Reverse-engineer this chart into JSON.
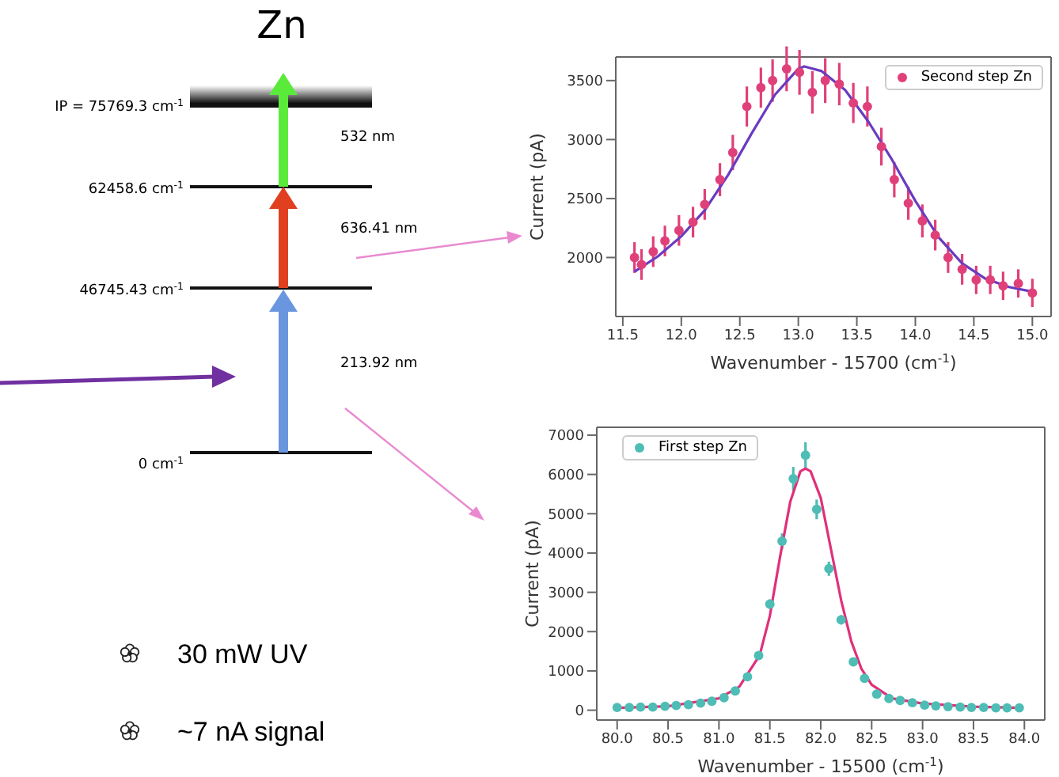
{
  "chart_data": [
    {
      "type": "other",
      "title": "Zn",
      "annotations": [
        "IP = 75769.3 cm$^{-1}$",
        "62458.6 cm$^{-1}$",
        "46745.43 cm$^{-1}$",
        "0 cm$^{-1}$",
        "532 nm",
        "636.41 nm",
        "213.92 nm",
        "30 mW UV",
        "~7 nA signal"
      ]
    },
    {
      "type": "scatter",
      "xlabel": "Wavenumber - 15700 (cm$^{-1}$)",
      "ylabel": "Current (pA)",
      "xlim": [
        11.44,
        15.16
      ],
      "ylim": [
        1500,
        3700
      ],
      "xticks": [
        11.5,
        {
          "value": 12,
          "label": "12.0"
        },
        12.5,
        {
          "value": 13,
          "label": "13.0"
        },
        13.5,
        {
          "value": 14,
          "label": "14.0"
        },
        14.5,
        {
          "value": 15,
          "label": "15.0"
        }
      ],
      "yticks": [
        2000,
        2500,
        3000,
        3500
      ],
      "legend": "top right",
      "series": [
        {
          "name": "Second step Zn",
          "type": "scatter",
          "marker": "circle",
          "color": "#e0407a",
          "x": [
            11.6,
            11.66,
            11.76,
            11.86,
            11.98,
            12.1,
            12.2,
            12.33,
            12.44,
            12.56,
            12.68,
            12.78,
            12.9,
            13.01,
            13.12,
            13.23,
            13.35,
            13.47,
            13.59,
            13.71,
            13.82,
            13.94,
            14.06,
            14.17,
            14.28,
            14.4,
            14.52,
            14.64,
            14.75,
            14.88,
            15.0
          ],
          "values": [
            2000,
            1940,
            2050,
            2140,
            2230,
            2300,
            2450,
            2660,
            2890,
            3280,
            3440,
            3500,
            3600,
            3570,
            3400,
            3500,
            3470,
            3310,
            3280,
            2940,
            2660,
            2460,
            2310,
            2190,
            2000,
            1900,
            1810,
            1810,
            1760,
            1780,
            1700
          ],
          "errors": [
            130,
            130,
            130,
            130,
            130,
            130,
            130,
            140,
            150,
            170,
            170,
            180,
            190,
            190,
            180,
            190,
            180,
            170,
            170,
            160,
            150,
            140,
            140,
            130,
            130,
            130,
            120,
            120,
            120,
            120,
            120
          ]
        },
        {
          "type": "line",
          "marker": "none",
          "color": "#6a3bc0",
          "x": [
            11.6,
            11.8,
            12.0,
            12.2,
            12.4,
            12.6,
            12.8,
            13.0,
            13.05,
            13.2,
            13.4,
            13.6,
            13.8,
            14.0,
            14.2,
            14.4,
            14.6,
            14.8,
            15.0
          ],
          "values": [
            1880,
            2010,
            2180,
            2400,
            2700,
            3050,
            3380,
            3600,
            3620,
            3580,
            3420,
            3150,
            2830,
            2480,
            2170,
            1950,
            1820,
            1750,
            1710
          ]
        }
      ]
    },
    {
      "type": "scatter",
      "xlabel": "Wavenumber - 15500 (cm$^{-1}$)",
      "ylabel": "Current (pA)",
      "xlim": [
        79.8,
        84.2
      ],
      "ylim": [
        -250,
        7200
      ],
      "xticks": [
        {
          "value": 80,
          "label": "80.0"
        },
        80.5,
        {
          "value": 81,
          "label": "81.0"
        },
        81.5,
        {
          "value": 82,
          "label": "82.0"
        },
        82.5,
        {
          "value": 83,
          "label": "83.0"
        },
        83.5,
        {
          "value": 84,
          "label": "84.0"
        }
      ],
      "yticks": [
        0,
        1000,
        2000,
        3000,
        4000,
        5000,
        6000,
        7000
      ],
      "legend": "top left",
      "series": [
        {
          "name": "First step Zn",
          "type": "scatter",
          "marker": "circle",
          "color": "#4dbdb5",
          "x": [
            80.0,
            80.12,
            80.23,
            80.35,
            80.47,
            80.58,
            80.7,
            80.82,
            80.93,
            81.05,
            81.16,
            81.28,
            81.39,
            81.5,
            81.62,
            81.73,
            81.85,
            81.96,
            82.08,
            82.2,
            82.32,
            82.43,
            82.55,
            82.67,
            82.78,
            82.9,
            83.02,
            83.13,
            83.25,
            83.37,
            83.48,
            83.6,
            83.72,
            83.83,
            83.95
          ],
          "values": [
            70,
            70,
            80,
            80,
            100,
            120,
            140,
            180,
            230,
            320,
            490,
            850,
            1390,
            2700,
            4300,
            5890,
            6490,
            5110,
            3600,
            2300,
            1230,
            810,
            410,
            300,
            250,
            190,
            130,
            110,
            90,
            80,
            70,
            70,
            60,
            60,
            60
          ],
          "errors": [
            60,
            60,
            60,
            60,
            60,
            60,
            60,
            60,
            60,
            80,
            80,
            90,
            100,
            120,
            200,
            300,
            330,
            250,
            180,
            120,
            100,
            80,
            60,
            60,
            60,
            60,
            60,
            60,
            60,
            60,
            60,
            60,
            60,
            60,
            60
          ]
        },
        {
          "type": "line",
          "marker": "none",
          "color": "#e0307a",
          "x": [
            80.0,
            80.5,
            81.0,
            81.2,
            81.4,
            81.5,
            81.6,
            81.7,
            81.8,
            81.85,
            81.9,
            82.0,
            82.1,
            82.2,
            82.3,
            82.4,
            82.5,
            82.7,
            83.0,
            83.5,
            83.95
          ],
          "values": [
            60,
            100,
            300,
            600,
            1400,
            2400,
            3900,
            5300,
            6080,
            6150,
            6080,
            5400,
            4100,
            2800,
            1750,
            1050,
            650,
            300,
            170,
            90,
            60
          ]
        }
      ]
    }
  ]
}
